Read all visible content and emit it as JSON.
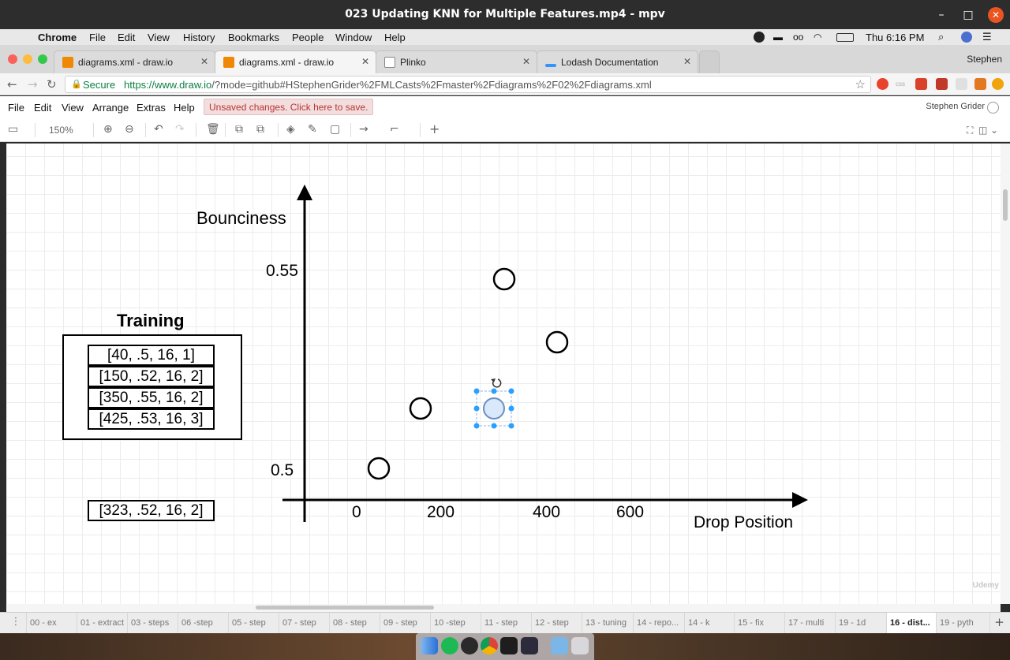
{
  "window": {
    "title": "023 Updating KNN for Multiple Features.mp4 - mpv",
    "minimize": "–",
    "maximize": "□",
    "close": "✕"
  },
  "mac_menu": {
    "app": "Chrome",
    "items": [
      "File",
      "Edit",
      "View",
      "History",
      "Bookmarks",
      "People",
      "Window",
      "Help"
    ],
    "clock": "Thu 6:16 PM"
  },
  "tabs": [
    {
      "title": "diagrams.xml - draw.io",
      "color": "#f08705"
    },
    {
      "title": "diagrams.xml - draw.io",
      "color": "#f08705"
    },
    {
      "title": "Plinko",
      "color": "#dddddd"
    },
    {
      "title": "Lodash Documentation",
      "color": "#3492ff"
    }
  ],
  "profile": "Stephen",
  "address": {
    "secure": "Secure",
    "url_host": "https://www.draw.io",
    "url_rest": "/?mode=github#HStephenGrider%2FMLCasts%2Fmaster%2Fdiagrams%2F02%2Fdiagrams.xml"
  },
  "drawio_menu": {
    "items": [
      "File",
      "Edit",
      "View",
      "Arrange",
      "Extras",
      "Help"
    ],
    "unsaved": "Unsaved changes. Click here to save.",
    "user": "Stephen Grider"
  },
  "toolbar": {
    "zoom": "150%"
  },
  "diagram": {
    "training_title": "Training",
    "training_rows": [
      "[40, .5, 16, 1]",
      "[150, .52, 16, 2]",
      "[350, .55, 16, 2]",
      "[425, .53, 16, 3]"
    ],
    "test_row": "[323, .52, 16, 2]",
    "y_label": "Bounciness",
    "x_label": "Drop Position",
    "y_ticks": [
      "0.55",
      "0.5"
    ],
    "x_ticks": [
      "0",
      "200",
      "400",
      "600"
    ]
  },
  "page_tabs": [
    "00 - ex",
    "01 - extract",
    "03 - steps",
    "06 -step",
    "05 - step",
    "07 - step",
    "08 - step",
    "09 - step",
    "10 -step",
    "11 - step",
    "12 - step",
    "13 - tuning",
    "14 - repo...",
    "14 - k",
    "15 - fix",
    "17 - multi",
    "19 - 1d",
    "16 - dist...",
    "19 - pyth"
  ],
  "watermark": "Udemy"
}
